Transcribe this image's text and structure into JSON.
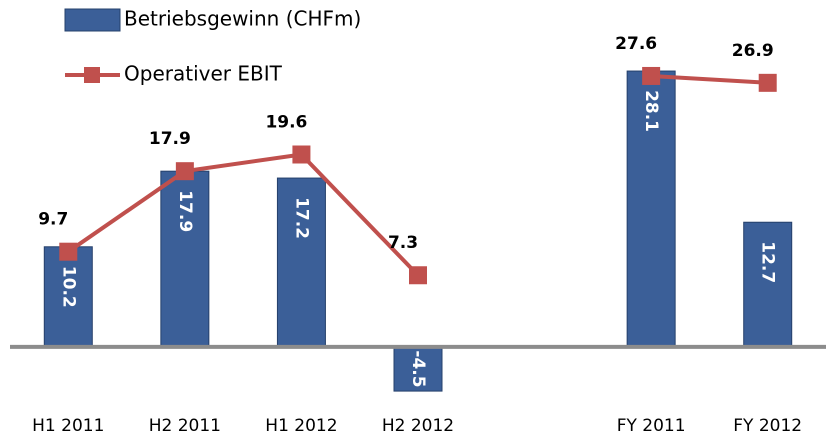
{
  "chart_data": {
    "type": "bar",
    "categories": [
      "H1 2011",
      "H2 2011",
      "H1 2012",
      "H2 2012",
      null,
      "FY 2011",
      "FY 2012"
    ],
    "series": [
      {
        "name": "Betriebsgewinn (CHFm)",
        "type": "bar",
        "color": "#3b5f98",
        "values": [
          10.2,
          17.9,
          17.2,
          -4.5,
          null,
          28.1,
          12.7
        ]
      },
      {
        "name": "Operativer EBIT",
        "type": "line",
        "color": "#c0504d",
        "values": [
          9.7,
          17.9,
          19.6,
          7.3,
          null,
          27.6,
          26.9
        ]
      }
    ],
    "ylim": [
      -5,
      30
    ]
  }
}
